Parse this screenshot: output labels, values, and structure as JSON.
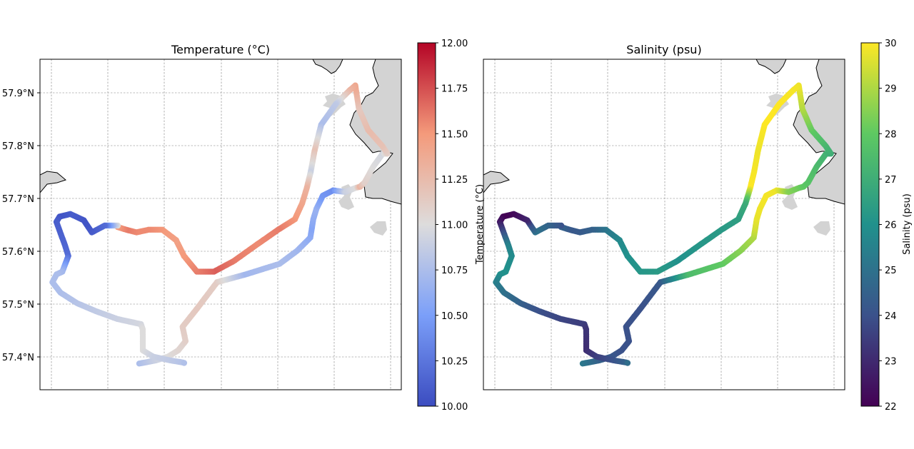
{
  "chart_data": [
    {
      "type": "scatter",
      "title": "Temperature (°C)",
      "ylim": [
        57.335,
        57.965
      ],
      "lat_ticks": [
        57.4,
        57.5,
        57.6,
        57.7,
        57.8,
        57.9
      ],
      "lat_tick_labels": [
        "57.4°N",
        "57.5°N",
        "57.6°N",
        "57.7°N",
        "57.8°N",
        "57.9°N"
      ],
      "colorbar": {
        "label": "Temperature (°C)",
        "colormap": "coolwarm",
        "range": [
          10.0,
          12.0
        ],
        "ticks": [
          10.0,
          10.25,
          10.5,
          10.75,
          11.0,
          11.25,
          11.5,
          11.75,
          12.0
        ],
        "tick_labels": [
          "10.00",
          "10.25",
          "10.50",
          "10.75",
          "11.00",
          "11.25",
          "11.50",
          "11.75",
          "12.00"
        ]
      },
      "grid": true
    },
    {
      "type": "scatter",
      "title": "Salinity (psu)",
      "ylim": [
        57.335,
        57.965
      ],
      "colorbar": {
        "label": "Salinity (psu)",
        "colormap": "viridis",
        "range": [
          22,
          30
        ],
        "ticks": [
          22,
          23,
          24,
          25,
          26,
          27,
          28,
          29,
          30
        ],
        "tick_labels": [
          "22",
          "23",
          "24",
          "25",
          "26",
          "27",
          "28",
          "29",
          "30"
        ]
      },
      "grid": true
    }
  ],
  "track": {
    "lat": [
      57.385,
      57.387,
      57.391,
      57.398,
      57.41,
      57.425,
      57.428,
      57.455,
      57.49,
      57.54,
      57.555,
      57.575,
      57.6,
      57.625,
      57.645,
      57.66,
      57.68,
      57.705,
      57.715,
      57.712,
      57.72,
      57.722,
      57.73,
      57.76,
      57.785,
      57.785,
      57.8,
      57.83,
      57.87,
      57.915,
      57.905,
      57.88,
      57.84,
      57.79,
      57.75,
      57.72,
      57.69,
      57.66,
      57.64,
      57.61,
      57.58,
      57.56,
      57.56,
      57.59,
      57.62,
      57.64,
      57.64,
      57.635,
      57.64,
      57.645,
      57.648,
      57.648,
      57.635,
      57.65,
      57.658,
      57.67,
      57.665,
      57.655,
      57.61,
      57.59,
      57.56,
      57.555,
      57.54,
      57.52,
      57.5,
      57.485,
      57.47,
      57.46,
      57.45,
      57.43,
      57.41,
      57.398,
      57.391,
      57.387,
      57.385
    ],
    "temperature": [
      10.75,
      10.8,
      10.9,
      11.0,
      11.05,
      11.08,
      11.1,
      11.12,
      11.15,
      11.12,
      10.7,
      10.75,
      10.7,
      10.6,
      10.55,
      10.6,
      10.65,
      10.45,
      10.4,
      10.9,
      11.0,
      11.3,
      11.1,
      11.0,
      10.95,
      11.1,
      11.2,
      11.25,
      11.15,
      11.4,
      11.3,
      10.85,
      10.75,
      11.2,
      10.9,
      11.3,
      11.4,
      11.5,
      11.6,
      11.55,
      11.6,
      11.7,
      11.6,
      11.5,
      11.45,
      11.5,
      11.55,
      11.55,
      11.6,
      11.5,
      11.0,
      10.2,
      10.1,
      10.05,
      10.05,
      10.1,
      10.05,
      10.1,
      10.15,
      10.2,
      10.7,
      10.75,
      10.75,
      10.75,
      10.8,
      10.85,
      10.9,
      10.95,
      11.0,
      11.0,
      11.0,
      10.9,
      10.85,
      10.8,
      10.75
    ],
    "salinity": [
      25.2,
      25.0,
      24.5,
      24.2,
      24.0,
      24.0,
      24.0,
      24.0,
      24.0,
      24.2,
      27.5,
      28.0,
      28.5,
      29.0,
      29.5,
      29.7,
      29.8,
      29.9,
      29.8,
      28.5,
      28.2,
      28.0,
      27.8,
      27.5,
      27.2,
      27.0,
      27.3,
      28.0,
      29.0,
      29.8,
      29.9,
      30.0,
      30.0,
      29.8,
      29.9,
      30.0,
      27.0,
      26.5,
      26.3,
      26.2,
      26.0,
      26.3,
      26.2,
      26.0,
      25.8,
      25.2,
      24.5,
      24.3,
      24.2,
      24.5,
      24.0,
      24.5,
      25.0,
      24.0,
      23.0,
      22.3,
      22.0,
      22.5,
      25.5,
      25.8,
      26.0,
      26.0,
      25.5,
      25.0,
      24.5,
      24.0,
      23.7,
      23.5,
      23.3,
      23.2,
      23.1,
      23.5,
      24.0,
      24.5,
      25.2
    ]
  }
}
